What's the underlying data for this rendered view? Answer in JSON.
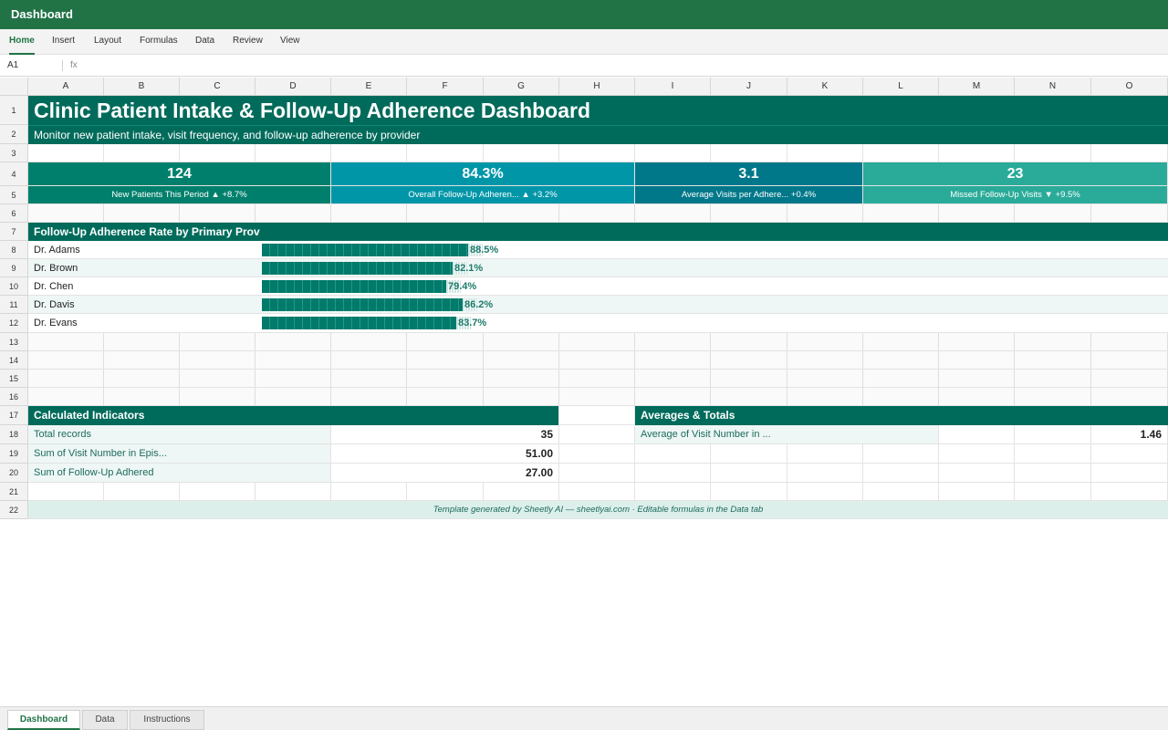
{
  "app": {
    "title": "Dashboard"
  },
  "ribbon": {
    "tabs": [
      "Home",
      "Insert",
      "Layout",
      "Formulas",
      "Data",
      "Review",
      "View"
    ],
    "active": "Home"
  },
  "formula_bar": {
    "cell_ref": "A1",
    "fx_label": "fx",
    "value": ""
  },
  "columns": [
    "A",
    "B",
    "C",
    "D",
    "E",
    "F",
    "G",
    "H",
    "I",
    "J",
    "K",
    "L",
    "M",
    "N",
    "O"
  ],
  "rows": [
    "1",
    "2",
    "3",
    "4",
    "5",
    "6",
    "7",
    "8",
    "9",
    "10",
    "11",
    "12",
    "13",
    "14",
    "15",
    "16",
    "17",
    "18",
    "19",
    "20",
    "21",
    "22"
  ],
  "dashboard": {
    "title": "Clinic Patient Intake & Follow-Up Adherence Dashboard",
    "subtitle": "Monitor new patient intake, visit frequency, and follow-up adherence by provider",
    "kpis": [
      {
        "value": "124",
        "label": "New Patients This Period ▲ +8.7%",
        "color": "#00806c"
      },
      {
        "value": "84.3%",
        "label": "Overall Follow-Up Adheren... ▲ +3.2%",
        "color": "#0096a8"
      },
      {
        "value": "3.1",
        "label": "Average Visits per Adhere... +0.4%",
        "color": "#00788a"
      },
      {
        "value": "23",
        "label": "Missed Follow-Up Visits ▼ +9.5%",
        "color": "#2aab99"
      }
    ],
    "adherence_section": {
      "title": "Follow-Up Adherence Rate by Primary Prov",
      "providers": [
        {
          "name": "Dr. Adams",
          "rate": 88.5,
          "label": "88.5%"
        },
        {
          "name": "Dr. Brown",
          "rate": 82.1,
          "label": "82.1%"
        },
        {
          "name": "Dr. Chen",
          "rate": 79.4,
          "label": "79.4%"
        },
        {
          "name": "Dr. Davis",
          "rate": 86.2,
          "label": "86.2%"
        },
        {
          "name": "Dr. Evans",
          "rate": 83.7,
          "label": "83.7%"
        }
      ]
    },
    "calculated_indicators": {
      "title": "Calculated Indicators",
      "items": [
        {
          "label": "Total records",
          "value": "35"
        },
        {
          "label": "Sum of Visit Number in Epis...",
          "value": "51.00"
        },
        {
          "label": "Sum of Follow-Up Adhered",
          "value": "27.00"
        }
      ]
    },
    "averages_totals": {
      "title": "Averages & Totals",
      "items": [
        {
          "label": "Average of Visit Number in ...",
          "value": "1.46"
        }
      ]
    },
    "footer": "Template generated by Sheetly AI — sheetlyai.com · Editable formulas in the Data tab"
  },
  "sheet_tabs": [
    "Dashboard",
    "Data",
    "Instructions"
  ],
  "active_sheet": "Dashboard"
}
